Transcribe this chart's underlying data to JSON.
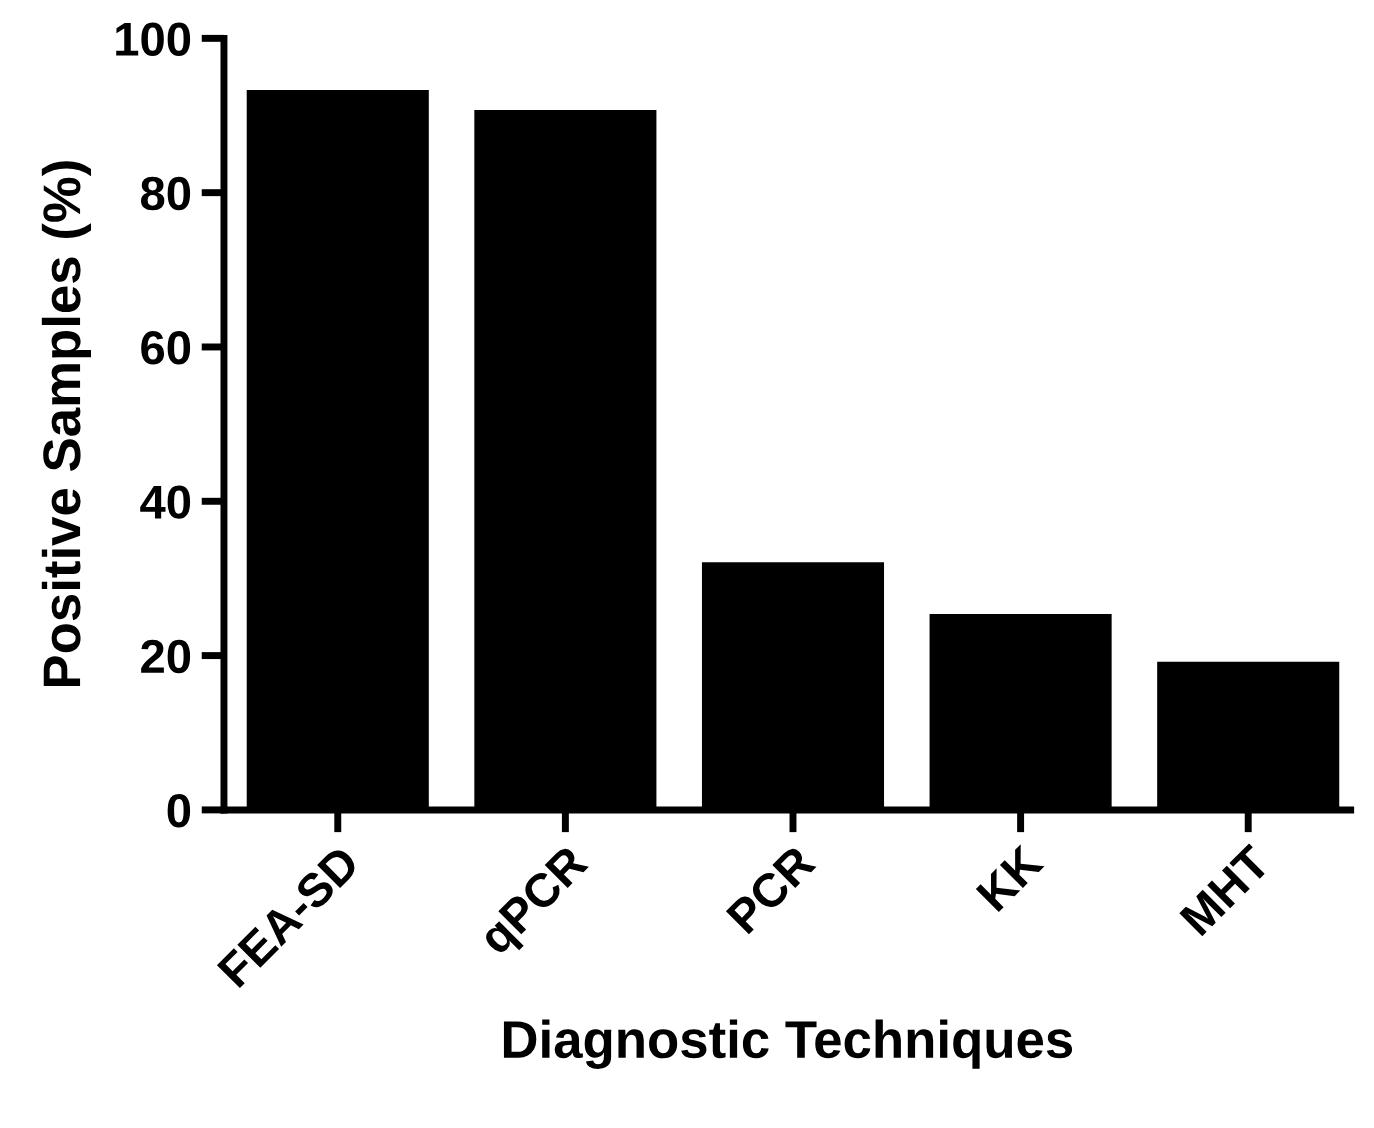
{
  "chart_data": {
    "type": "bar",
    "xlabel": "Diagnostic Techniques",
    "ylabel": "Positive Samples (%)",
    "categories": [
      "FEA-SD",
      "qPCR",
      "PCR",
      "KK",
      "MHT"
    ],
    "values": [
      93.3,
      90.7,
      32.1,
      25.4,
      19.2
    ],
    "color": "#000000",
    "ylim": [
      0,
      100
    ],
    "yticks": [
      0,
      20,
      40,
      60,
      80,
      100
    ],
    "grid": false
  }
}
